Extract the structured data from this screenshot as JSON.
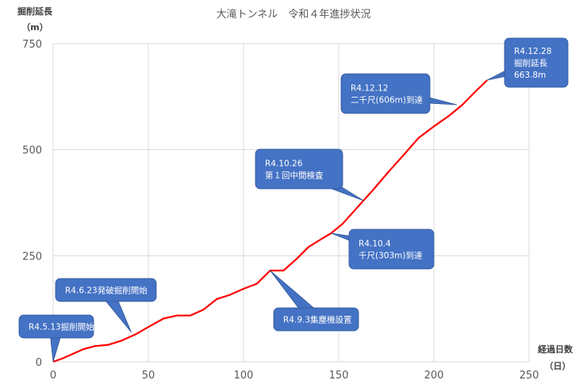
{
  "chart_data": {
    "type": "line",
    "title": "大滝トンネル　令和４年進捗状況",
    "xlabel": "経過日数",
    "xlabel_unit": "（日）",
    "ylabel": "掘削延長",
    "ylabel_unit": "（m）",
    "xlim": [
      0,
      250
    ],
    "ylim": [
      0,
      750
    ],
    "xticks": [
      0,
      50,
      100,
      150,
      200,
      250
    ],
    "yticks": [
      0,
      250,
      500,
      750
    ],
    "grid": true,
    "line_color": "#ff0000",
    "callout_color": "#4472c4",
    "series": [
      {
        "x": [
          0,
          5,
          10,
          16,
          22,
          29,
          36,
          43,
          50,
          58,
          65,
          72,
          79,
          86,
          93,
          100,
          107,
          114,
          121,
          128,
          134,
          140,
          146,
          152,
          160,
          168,
          176,
          184,
          192,
          200,
          208,
          215,
          222,
          228
        ],
        "y": [
          0,
          8,
          18,
          30,
          37,
          40,
          50,
          64,
          82,
          102,
          109,
          109,
          123,
          148,
          158,
          172,
          184,
          215,
          215,
          243,
          270,
          287,
          303,
          325,
          365,
          405,
          447,
          487,
          528,
          555,
          580,
          606,
          638,
          664
        ]
      }
    ],
    "annotations": [
      {
        "lines": [
          "R4.5.13掘削開始"
        ],
        "x": 0,
        "y": 0
      },
      {
        "lines": [
          "R4.6.23発破掘削開始"
        ],
        "x": 41,
        "y": 70
      },
      {
        "lines": [
          "R4.9.3集塵機設置"
        ],
        "x": 114,
        "y": 215
      },
      {
        "lines": [
          "R4.10.4",
          "千尺(303m)到達"
        ],
        "x": 146,
        "y": 303
      },
      {
        "lines": [
          "R4.10.26",
          "第１回中間検査"
        ],
        "x": 163,
        "y": 380
      },
      {
        "lines": [
          "R4.12.12",
          "二千尺(606m)到達"
        ],
        "x": 212,
        "y": 606
      },
      {
        "lines": [
          "R4.12.28",
          "掘削延長",
          "663.8m"
        ],
        "x": 228,
        "y": 664
      }
    ]
  }
}
